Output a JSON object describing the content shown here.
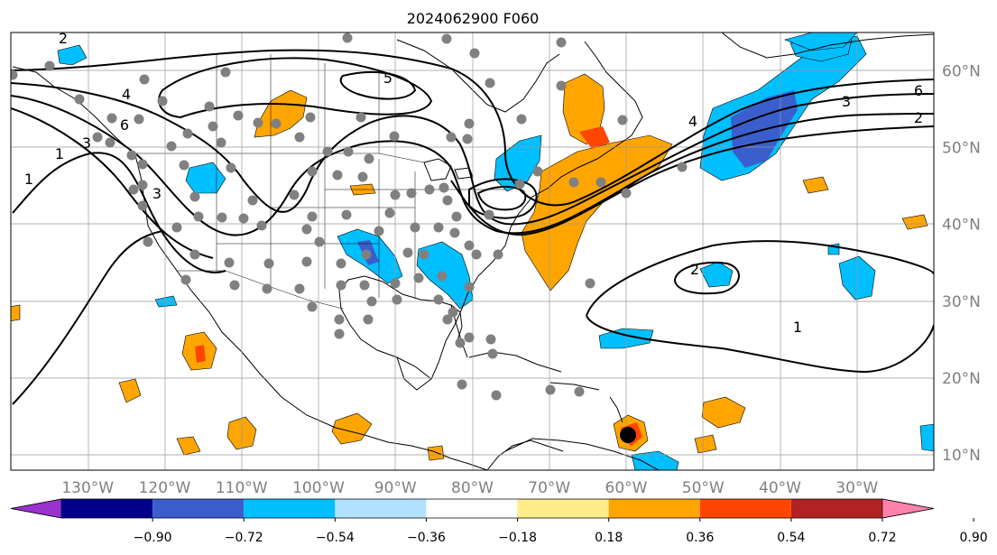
{
  "title": "2024062900 F060",
  "map": {
    "lon_range": [
      -140,
      -20
    ],
    "lat_range": [
      8,
      65
    ],
    "lon_ticks": [
      {
        "value": -130,
        "label": "130°W"
      },
      {
        "value": -120,
        "label": "120°W"
      },
      {
        "value": -110,
        "label": "110°W"
      },
      {
        "value": -100,
        "label": "100°W"
      },
      {
        "value": -90,
        "label": "90°W"
      },
      {
        "value": -80,
        "label": "80°W"
      },
      {
        "value": -70,
        "label": "70°W"
      },
      {
        "value": -60,
        "label": "60°W"
      },
      {
        "value": -50,
        "label": "50°W"
      },
      {
        "value": -40,
        "label": "40°W"
      },
      {
        "value": -30,
        "label": "30°W"
      }
    ],
    "lat_ticks": [
      {
        "value": 60,
        "label": "60°N"
      },
      {
        "value": 50,
        "label": "50°N"
      },
      {
        "value": 40,
        "label": "40°N"
      },
      {
        "value": 30,
        "label": "30°N"
      },
      {
        "value": 20,
        "label": "20°N"
      },
      {
        "value": 10,
        "label": "10°N"
      }
    ],
    "grid": true
  },
  "colorbar": {
    "levels": [
      "−0.90",
      "−0.72",
      "−0.54",
      "−0.36",
      "−0.18",
      "0.18",
      "0.36",
      "0.54",
      "0.72",
      "0.90"
    ],
    "colors": [
      "#9a32cd",
      "#00008b",
      "#3a5fcd",
      "#00bfff",
      "#b0e2ff",
      "#ffffff",
      "#ffec8b",
      "#ffa500",
      "#ff4500",
      "#b22222",
      "#ff82ab"
    ],
    "extend": "both"
  },
  "contour_labels": [
    "2",
    "4",
    "6",
    "3",
    "1",
    "5",
    "6",
    "3",
    "2",
    "4",
    "2",
    "1",
    "1",
    "3"
  ],
  "marker_colors": {
    "station": "#808080",
    "storm": "#000000"
  }
}
